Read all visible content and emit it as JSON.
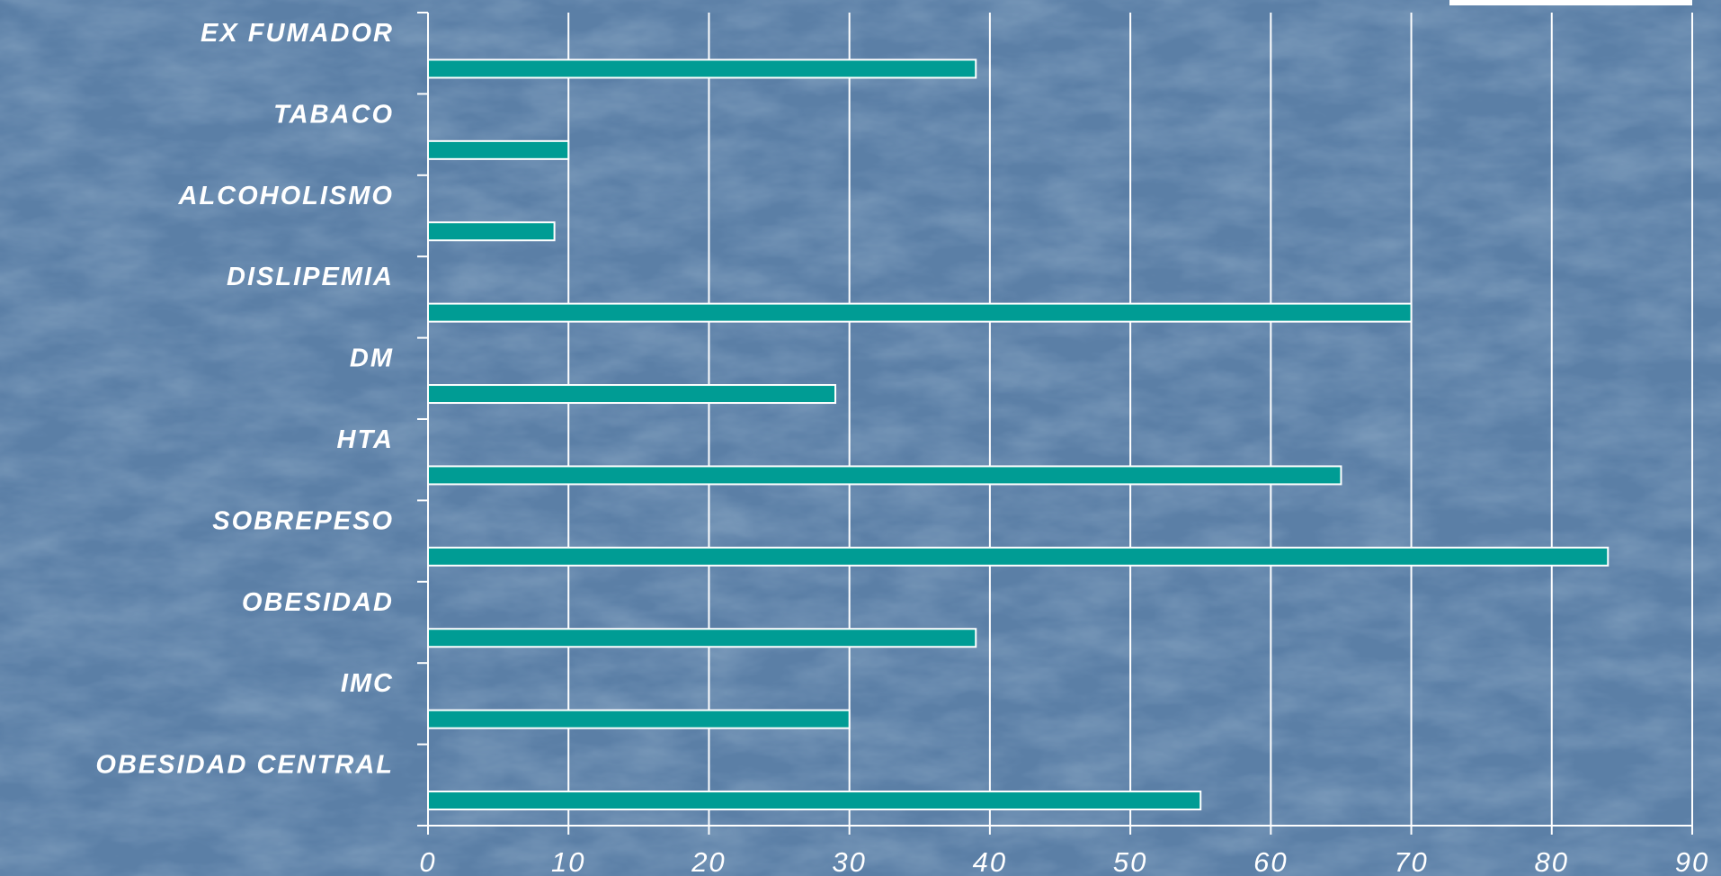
{
  "chart_data": {
    "type": "bar",
    "orientation": "horizontal",
    "categories": [
      "EX FUMADOR",
      "TABACO",
      "ALCOHOLISMO",
      "DISLIPEMIA",
      "DM",
      "HTA",
      "SOBREPESO",
      "OBESIDAD",
      "IMC",
      "OBESIDAD CENTRAL"
    ],
    "values": [
      39,
      10,
      9,
      70,
      29,
      65,
      84,
      39,
      30,
      55
    ],
    "xlim": [
      0,
      90
    ],
    "xticks": [
      "0",
      "10",
      "20",
      "30",
      "40",
      "50",
      "60",
      "70",
      "80",
      "90"
    ],
    "grid": true,
    "title": "",
    "xlabel": "",
    "ylabel": "",
    "colors": {
      "background": "#5b7fa6",
      "bar_fill": "#009c94",
      "bar_stroke": "#ffffff",
      "grid": "#ffffff",
      "text": "#ffffff"
    }
  }
}
